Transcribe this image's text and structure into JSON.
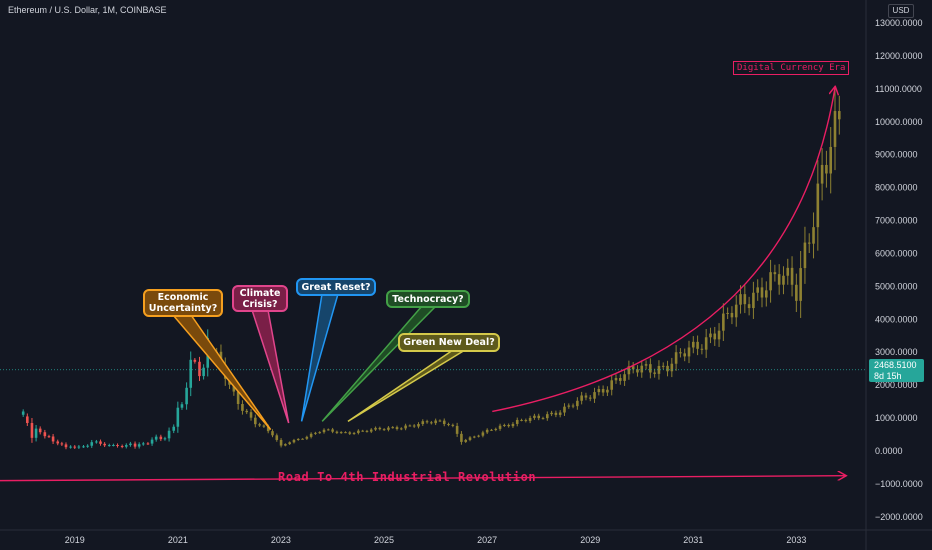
{
  "header": {
    "symbol_title": "Ethereum / U.S. Dollar, 1M, COINBASE",
    "currency": "USD"
  },
  "price_badge": {
    "price": "2468.5100",
    "countdown": "8d 15h",
    "color": "#26a69a"
  },
  "annotations": {
    "digital_era": "Digital Currency Era",
    "road_label": "Road To 4th Industrial Revolution",
    "arrow_color": "#e91e63",
    "callouts": [
      {
        "id": "economic",
        "line1": "Economic",
        "line2": "Uncertainty?",
        "fill": "#7a4a0c",
        "border": "#f59f1f"
      },
      {
        "id": "climate",
        "line1": "Climate",
        "line2": "Crisis?",
        "fill": "#7a1f47",
        "border": "#e1458c"
      },
      {
        "id": "reset",
        "line1": "Great Reset?",
        "line2": "",
        "fill": "#16456b",
        "border": "#2196f3"
      },
      {
        "id": "technocracy",
        "line1": "Technocracy?",
        "line2": "",
        "fill": "#1f4d25",
        "border": "#43a047"
      },
      {
        "id": "greendeal",
        "line1": "Green New Deal?",
        "line2": "",
        "fill": "#5e5a1c",
        "border": "#d4c94a"
      }
    ]
  },
  "chart_data": {
    "type": "candlestick",
    "xlabel": "",
    "ylabel": "",
    "x_ticks": [
      "2019",
      "2021",
      "2023",
      "2025",
      "2027",
      "2029",
      "2031",
      "2033"
    ],
    "y_ticks": [
      "13000.0000",
      "12000.0000",
      "11000.0000",
      "10000.0000",
      "9000.0000",
      "8000.0000",
      "7000.0000",
      "6000.0000",
      "5000.0000",
      "4000.0000",
      "3000.0000",
      "2000.0000",
      "1000.0000",
      "0.0000",
      "−1000.0000",
      "−2000.0000"
    ],
    "ylim": [
      -2400,
      13700
    ],
    "xlim": [
      2017.55,
      2034.35
    ],
    "last_price": 2468.51,
    "grid": false,
    "up_color": "#26a69a",
    "down_color": "#ef5350",
    "projection_color": "#8e8132",
    "historical": [
      [
        2018.0,
        1100,
        1200
      ],
      [
        2018.08,
        1050,
        850
      ],
      [
        2018.17,
        850,
        400
      ],
      [
        2018.25,
        400,
        680
      ],
      [
        2018.33,
        680,
        570
      ],
      [
        2018.42,
        570,
        450
      ],
      [
        2018.5,
        450,
        440
      ],
      [
        2018.58,
        440,
        290
      ],
      [
        2018.67,
        290,
        230
      ],
      [
        2018.75,
        230,
        200
      ],
      [
        2018.83,
        200,
        115
      ],
      [
        2018.92,
        115,
        133
      ],
      [
        2019.0,
        133,
        107
      ],
      [
        2019.08,
        107,
        135
      ],
      [
        2019.17,
        135,
        141
      ],
      [
        2019.25,
        141,
        160
      ],
      [
        2019.33,
        160,
        268
      ],
      [
        2019.42,
        268,
        290
      ],
      [
        2019.5,
        290,
        218
      ],
      [
        2019.58,
        218,
        172
      ],
      [
        2019.67,
        172,
        180
      ],
      [
        2019.75,
        180,
        182
      ],
      [
        2019.83,
        182,
        151
      ],
      [
        2019.92,
        151,
        130
      ],
      [
        2020.0,
        130,
        180
      ],
      [
        2020.08,
        180,
        225
      ],
      [
        2020.17,
        225,
        133
      ],
      [
        2020.25,
        133,
        206
      ],
      [
        2020.33,
        206,
        230
      ],
      [
        2020.42,
        230,
        225
      ],
      [
        2020.5,
        225,
        345
      ],
      [
        2020.58,
        345,
        435
      ],
      [
        2020.67,
        435,
        360
      ],
      [
        2020.75,
        360,
        385
      ],
      [
        2020.83,
        385,
        615
      ],
      [
        2020.92,
        615,
        737
      ],
      [
        2021.0,
        737,
        1315
      ],
      [
        2021.08,
        1315,
        1420
      ],
      [
        2021.17,
        1420,
        1920
      ],
      [
        2021.25,
        1920,
        2770
      ],
      [
        2021.33,
        2770,
        2710
      ],
      [
        2021.42,
        2710,
        2275
      ],
      [
        2021.5,
        2275,
        2530
      ],
      [
        2021.58,
        2530,
        3430
      ]
    ],
    "projection_start": 2021.67,
    "projection_step": 0.0833,
    "projection_path": [
      [
        2021.67,
        3000
      ],
      [
        2021.83,
        2600
      ],
      [
        2022.0,
        1900
      ],
      [
        2022.25,
        1300
      ],
      [
        2022.5,
        900
      ],
      [
        2022.83,
        500
      ],
      [
        2023.0,
        150
      ],
      [
        2023.2,
        300
      ],
      [
        2023.5,
        450
      ],
      [
        2023.8,
        620
      ],
      [
        2024.2,
        550
      ],
      [
        2024.5,
        600
      ],
      [
        2025.0,
        660
      ],
      [
        2025.5,
        780
      ],
      [
        2026.0,
        880
      ],
      [
        2026.3,
        850
      ],
      [
        2026.5,
        300
      ],
      [
        2026.8,
        450
      ],
      [
        2027.2,
        740
      ],
      [
        2027.6,
        900
      ],
      [
        2028.0,
        1000
      ],
      [
        2028.5,
        1300
      ],
      [
        2029.0,
        1650
      ],
      [
        2029.5,
        2200
      ],
      [
        2030.0,
        2500
      ],
      [
        2030.5,
        2600
      ],
      [
        2031.0,
        3100
      ],
      [
        2031.5,
        3800
      ],
      [
        2032.0,
        4500
      ],
      [
        2032.4,
        5200
      ],
      [
        2032.7,
        5200
      ],
      [
        2032.9,
        5000
      ],
      [
        2033.0,
        4800
      ],
      [
        2033.2,
        6500
      ],
      [
        2033.5,
        8500
      ],
      [
        2033.7,
        9200
      ],
      [
        2033.9,
        10000
      ]
    ]
  }
}
